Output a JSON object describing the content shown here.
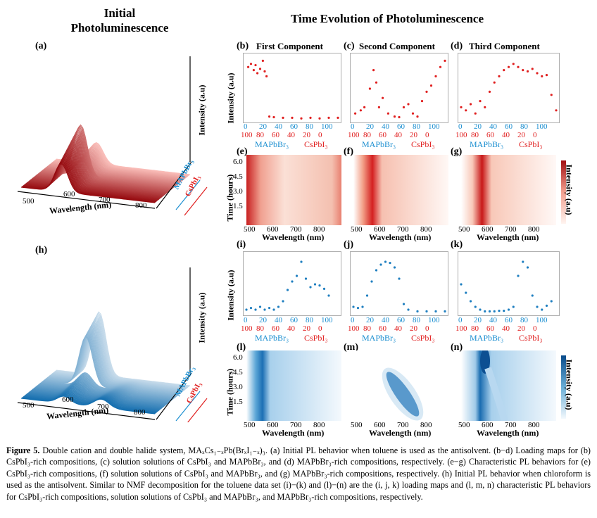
{
  "headers": {
    "initial": "Initial Photoluminescence",
    "time_evolution": "Time Evolution of Photoluminescence"
  },
  "panel_labels": [
    "(a)",
    "(b)",
    "(c)",
    "(d)",
    "(e)",
    "(f)",
    "(g)",
    "(h)",
    "(i)",
    "(j)",
    "(k)",
    "(l)",
    "(m)",
    "(n)"
  ],
  "component_titles": [
    "First Component",
    "Second Component",
    "Third Component"
  ],
  "axis_labels": {
    "intensity_au": "Intensity (a.u)",
    "wavelength_nm": "Wavelength (nm)",
    "time_hours": "Time (hours)",
    "mapbbr": "MAPbBr₃",
    "cspbi": "CsPbI₃",
    "colorbar_intensity": "Intensity (a.u)"
  },
  "ticks": {
    "mapbbr_ticks": [
      "0",
      "20",
      "40",
      "60",
      "80",
      "100"
    ],
    "cspbi_ticks": [
      "100",
      "80",
      "60",
      "40",
      "20",
      "0"
    ],
    "wavelength_ticks_maps": [
      "500",
      "600",
      "700",
      "800"
    ],
    "time_ticks": [
      "6.0",
      "4.5",
      "3.0",
      "1.5"
    ],
    "wavelength_ticks_3d": [
      "500",
      "600",
      "700",
      "800"
    ]
  },
  "colors": {
    "red": "#e02020",
    "blue": "#1f7fc0",
    "mapbbr_label": "#1a8ed0",
    "cspbi_label": "#e02020"
  },
  "chart_data": [
    {
      "type": "scatter",
      "panel": "(b)",
      "title": "First Component",
      "series": [
        {
          "values_x": [
            2,
            5,
            8,
            10,
            12,
            15,
            18,
            20,
            22,
            25,
            30,
            40,
            50,
            60,
            70,
            80,
            90,
            100
          ],
          "values_y": [
            0.85,
            0.9,
            0.8,
            0.88,
            0.75,
            0.82,
            0.95,
            0.78,
            0.7,
            0.05,
            0.04,
            0.03,
            0.03,
            0.02,
            0.03,
            0.02,
            0.03,
            0.03
          ]
        }
      ]
    },
    {
      "type": "scatter",
      "panel": "(c)",
      "title": "Second Component",
      "series": [
        {
          "values_x": [
            2,
            8,
            12,
            18,
            22,
            25,
            28,
            32,
            38,
            45,
            50,
            55,
            60,
            65,
            70,
            75,
            80,
            85,
            90,
            95,
            100
          ],
          "values_y": [
            0.1,
            0.15,
            0.2,
            0.5,
            0.8,
            0.6,
            0.2,
            0.35,
            0.1,
            0.05,
            0.04,
            0.2,
            0.25,
            0.1,
            0.05,
            0.3,
            0.45,
            0.55,
            0.7,
            0.85,
            0.95
          ]
        }
      ]
    },
    {
      "type": "scatter",
      "panel": "(d)",
      "title": "Third Component",
      "series": [
        {
          "values_x": [
            0,
            5,
            10,
            15,
            20,
            25,
            30,
            35,
            40,
            45,
            50,
            55,
            60,
            65,
            70,
            75,
            80,
            85,
            90,
            95,
            100
          ],
          "values_y": [
            0.2,
            0.15,
            0.25,
            0.1,
            0.3,
            0.2,
            0.45,
            0.6,
            0.7,
            0.8,
            0.85,
            0.9,
            0.85,
            0.8,
            0.78,
            0.82,
            0.75,
            0.7,
            0.72,
            0.4,
            0.15
          ]
        }
      ]
    },
    {
      "type": "scatter",
      "panel": "(i)",
      "series": [
        {
          "values_x": [
            0,
            5,
            10,
            15,
            20,
            25,
            30,
            35,
            40,
            45,
            50,
            55,
            60,
            65,
            70,
            75,
            80,
            85,
            90
          ],
          "values_y": [
            0.05,
            0.08,
            0.05,
            0.1,
            0.05,
            0.08,
            0.05,
            0.1,
            0.2,
            0.4,
            0.55,
            0.65,
            0.9,
            0.6,
            0.45,
            0.5,
            0.48,
            0.42,
            0.3
          ]
        }
      ]
    },
    {
      "type": "scatter",
      "panel": "(j)",
      "series": [
        {
          "values_x": [
            0,
            5,
            10,
            15,
            20,
            25,
            30,
            35,
            40,
            45,
            50,
            55,
            60,
            70,
            80,
            90,
            100
          ],
          "values_y": [
            0.1,
            0.08,
            0.1,
            0.3,
            0.55,
            0.75,
            0.85,
            0.9,
            0.88,
            0.8,
            0.6,
            0.15,
            0.05,
            0.02,
            0.02,
            0.02,
            0.02
          ]
        }
      ]
    },
    {
      "type": "scatter",
      "panel": "(k)",
      "series": [
        {
          "values_x": [
            0,
            5,
            10,
            15,
            20,
            25,
            30,
            35,
            40,
            45,
            50,
            55,
            60,
            65,
            70,
            75,
            80,
            85,
            90,
            95
          ],
          "values_y": [
            0.5,
            0.35,
            0.2,
            0.1,
            0.05,
            0.02,
            0.02,
            0.02,
            0.03,
            0.03,
            0.05,
            0.1,
            0.65,
            0.9,
            0.8,
            0.3,
            0.1,
            0.05,
            0.12,
            0.2
          ]
        }
      ]
    }
  ],
  "caption": {
    "label": "Figure 5.",
    "text": "Double cation and double halide system, MAₓCs₁₋ₓPb(BrₓI₁₋ₓ)₃. (a) Initial PL behavior when toluene is used as the antisolvent. (b−d) Loading maps for (b) CsPbI₃-rich compositions, (c) solution solutions of CsPbI₃ and MAPbBr₃, and (d) MAPbBr₃-rich compositions, respectively. (e−g) Characteristic PL behaviors for (e) CsPbI₃-rich compositions, (f) solution solutions of CsPbI₃ and MAPbBr₃, and (g) MAPbBr₃-rich compositions, respectively. (h) Initial PL behavior when chloroform is used as the antisolvent. Similar to NMF decomposition for the toluene data set (i)−(k) and (l)−(n) are the (i, j, k) loading maps and (l, m, n) characteristic PL behaviors for CsPbI₃-rich compositions, solution solutions of CsPbI₃ and MAPbBr₃, and MAPbBr₃-rich compositions, respectively."
  }
}
